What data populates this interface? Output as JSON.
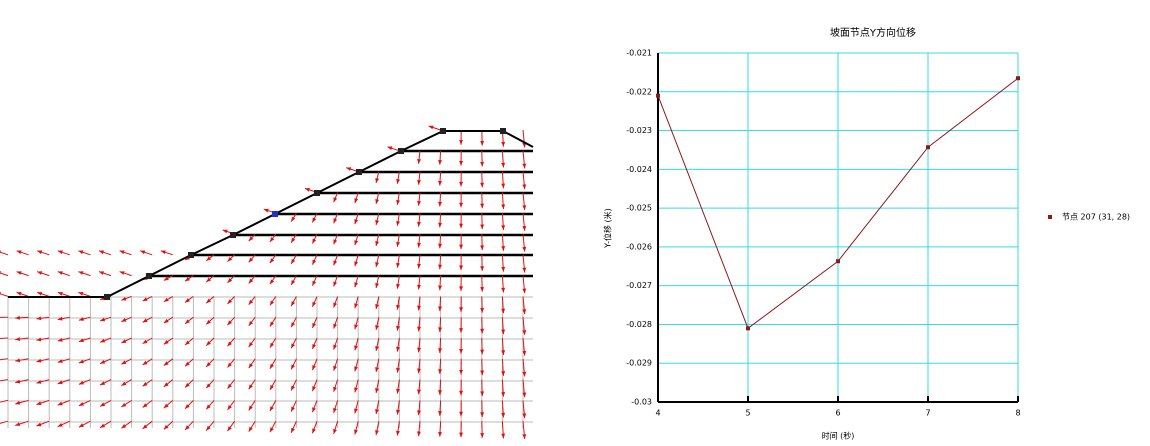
{
  "chart_data": {
    "type": "line",
    "title": "坡面节点Y方向位移",
    "x_label": "时间 (秒)",
    "y_label": "Y-位移 (米)",
    "x": [
      4,
      5,
      6,
      7,
      8
    ],
    "series": [
      {
        "name": "节点 207 (31, 28)",
        "color": "#8b1a1a",
        "values": [
          -0.0221,
          -0.0281,
          -0.02637,
          -0.02343,
          -0.02165
        ]
      }
    ],
    "xlim": [
      4,
      8
    ],
    "xticks": [
      4,
      5,
      6,
      7,
      8
    ],
    "ylim": [
      -0.03,
      -0.021
    ],
    "yticks": [
      -0.021,
      -0.022,
      -0.023,
      -0.024,
      -0.025,
      -0.026,
      -0.027,
      -0.028,
      -0.029,
      -0.03
    ],
    "grid": true,
    "grid_color": "#33dde0",
    "legend": "right"
  }
}
